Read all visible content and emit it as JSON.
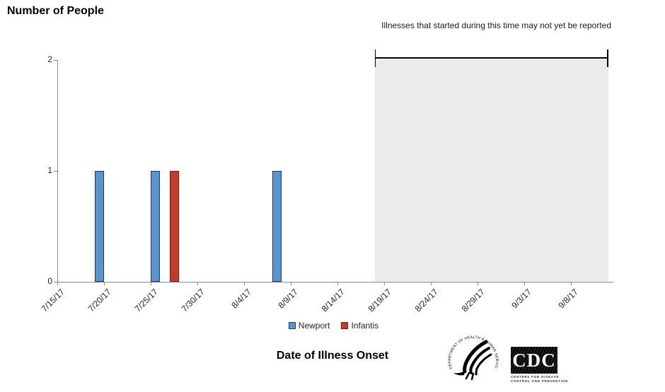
{
  "page": {
    "title": "Number of People",
    "x_axis_title": "Date of Illness Onset"
  },
  "annotation": {
    "text": "Illnesses that started during this time may not yet be reported"
  },
  "colors": {
    "newport_fill": "#5795CE",
    "newport_border": "#1F3864",
    "infantis_fill": "#C23B2C",
    "infantis_border": "#7B1D12",
    "shade": "#EBEBEB",
    "axis": "#8C8C8C",
    "bracket": "#000000"
  },
  "legend": {
    "items": [
      {
        "label": "Newport",
        "series": "newport"
      },
      {
        "label": "Infantis",
        "series": "infantis"
      }
    ]
  },
  "chart_data": {
    "type": "bar",
    "title": "Number of People",
    "xlabel": "Date of Illness Onset",
    "ylabel": "Number of People",
    "ylim": [
      0,
      2
    ],
    "yticks": [
      0,
      1,
      2
    ],
    "x_tick_labels": [
      "7/15/17",
      "7/20/17",
      "7/25/17",
      "7/30/17",
      "8/4/17",
      "8/9/17",
      "8/14/17",
      "8/19/17",
      "8/24/17",
      "8/29/17",
      "9/3/17",
      "9/8/17"
    ],
    "x_tick_interval_days": 5,
    "x_range": {
      "start": "7/15/17",
      "end": "9/12/17"
    },
    "grid": false,
    "legend_position": "bottom",
    "series": [
      {
        "name": "Newport",
        "color": "#5795CE",
        "points": [
          {
            "date": "7/19/17",
            "days_from_start": 4,
            "value": 1
          },
          {
            "date": "7/25/17",
            "days_from_start": 10,
            "value": 1
          },
          {
            "date": "8/7/17",
            "days_from_start": 23,
            "value": 1
          }
        ]
      },
      {
        "name": "Infantis",
        "color": "#C23B2C",
        "points": [
          {
            "date": "7/27/17",
            "days_from_start": 12,
            "value": 1
          }
        ]
      }
    ],
    "unreported_window": {
      "label": "Illnesses that started during this time may not yet be reported",
      "start_date": "8/18/17",
      "end_date": "9/12/17",
      "start_days_from_start": 34,
      "end_days_from_start": 59
    }
  },
  "logos": {
    "hhs_ring_text": "DEPARTMENT OF HEALTH & HUMAN SERVICES • USA",
    "cdc_acronym": "CDC",
    "cdc_caption_line1": "CENTERS FOR DISEASE",
    "cdc_caption_line2": "CONTROL AND PREVENTION"
  }
}
